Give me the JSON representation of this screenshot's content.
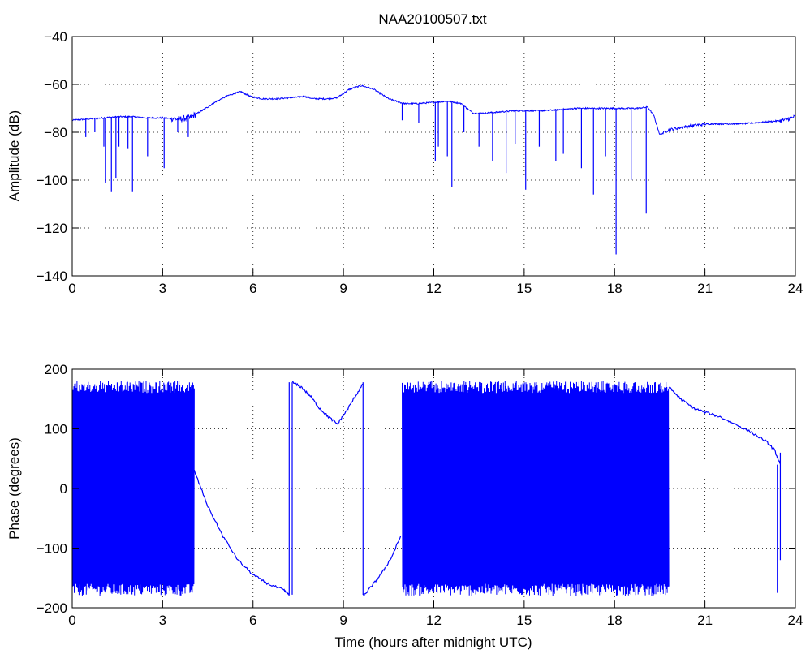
{
  "chart_data": [
    {
      "type": "line",
      "title": "NAA20100507.txt",
      "xlabel": "",
      "ylabel": "Amplitude (dB)",
      "xlim": [
        0,
        24
      ],
      "ylim": [
        -140,
        -40
      ],
      "xticks": [
        0,
        3,
        6,
        9,
        12,
        15,
        18,
        21,
        24
      ],
      "yticks": [
        -140,
        -120,
        -100,
        -80,
        -60,
        -40
      ],
      "grid": true,
      "line_color": "#0000ff",
      "series": [
        {
          "x": [
            0,
            0.5,
            1,
            1.5,
            2,
            2.5,
            3,
            3.5,
            3.9,
            4.3,
            4.8,
            5.2,
            5.6,
            5.9,
            6.3,
            6.8,
            7.3,
            7.7,
            8.0,
            8.5,
            8.8,
            9.2,
            9.6,
            10.0,
            10.5,
            11.0,
            11.5,
            12.0,
            12.5,
            12.9,
            13.3,
            13.7,
            14.2,
            14.7,
            15.2,
            15.7,
            16.2,
            16.7,
            17.2,
            17.7,
            18.2,
            18.7,
            19.1,
            19.3,
            19.5,
            19.8,
            20.2,
            20.7,
            21.2,
            21.7,
            22.2,
            22.7,
            23.2,
            23.6,
            24.0
          ],
          "y": [
            -75,
            -74.5,
            -74,
            -73.5,
            -73.5,
            -74,
            -74,
            -74.5,
            -74,
            -71,
            -67,
            -64.5,
            -63,
            -65,
            -66,
            -66,
            -65.5,
            -65,
            -66,
            -66,
            -65.5,
            -62,
            -60.5,
            -62,
            -66,
            -68,
            -68,
            -67.5,
            -67,
            -68,
            -72,
            -72,
            -71.5,
            -71,
            -71,
            -71,
            -70.5,
            -70,
            -70,
            -70,
            -70,
            -70,
            -69.5,
            -73,
            -81,
            -79,
            -78,
            -77,
            -76.5,
            -76.5,
            -76.5,
            -76,
            -75.5,
            -75,
            -73.5
          ]
        }
      ],
      "spikes": [
        {
          "x": 0.45,
          "y": -82
        },
        {
          "x": 0.75,
          "y": -80
        },
        {
          "x": 1.05,
          "y": -86
        },
        {
          "x": 1.1,
          "y": -101
        },
        {
          "x": 1.3,
          "y": -105
        },
        {
          "x": 1.45,
          "y": -99
        },
        {
          "x": 1.55,
          "y": -86
        },
        {
          "x": 1.85,
          "y": -87
        },
        {
          "x": 2.0,
          "y": -105
        },
        {
          "x": 2.5,
          "y": -90
        },
        {
          "x": 3.05,
          "y": -95
        },
        {
          "x": 3.5,
          "y": -80
        },
        {
          "x": 3.85,
          "y": -82
        },
        {
          "x": 10.95,
          "y": -75
        },
        {
          "x": 11.5,
          "y": -76
        },
        {
          "x": 12.05,
          "y": -92
        },
        {
          "x": 12.15,
          "y": -86
        },
        {
          "x": 12.45,
          "y": -90
        },
        {
          "x": 12.6,
          "y": -103
        },
        {
          "x": 13.0,
          "y": -80
        },
        {
          "x": 13.5,
          "y": -86
        },
        {
          "x": 13.95,
          "y": -92
        },
        {
          "x": 14.4,
          "y": -97
        },
        {
          "x": 14.7,
          "y": -85
        },
        {
          "x": 15.05,
          "y": -104
        },
        {
          "x": 15.5,
          "y": -86
        },
        {
          "x": 16.05,
          "y": -92
        },
        {
          "x": 16.3,
          "y": -89
        },
        {
          "x": 16.9,
          "y": -95
        },
        {
          "x": 17.3,
          "y": -106
        },
        {
          "x": 17.7,
          "y": -90
        },
        {
          "x": 18.05,
          "y": -131
        },
        {
          "x": 18.55,
          "y": -100
        },
        {
          "x": 19.05,
          "y": -114
        }
      ]
    },
    {
      "type": "line",
      "title": "",
      "xlabel": "Time (hours after midnight UTC)",
      "ylabel": "Phase (degrees)",
      "xlim": [
        0,
        24
      ],
      "ylim": [
        -200,
        200
      ],
      "xticks": [
        0,
        3,
        6,
        9,
        12,
        15,
        18,
        21,
        24
      ],
      "yticks": [
        -200,
        -100,
        0,
        100,
        200
      ],
      "grid": true,
      "line_color": "#0000ff",
      "series": [
        {
          "name": "",
          "x": [
            4.05,
            4.5,
            5.0,
            5.5,
            6.0,
            6.5,
            7.0,
            7.2
          ],
          "y": [
            30,
            -30,
            -80,
            -120,
            -145,
            -160,
            -170,
            -178
          ]
        },
        {
          "x": [
            7.3,
            7.6,
            7.9,
            8.2,
            8.5,
            8.8,
            9.1,
            9.4,
            9.65
          ],
          "y": [
            178,
            170,
            155,
            135,
            120,
            108,
            130,
            155,
            175
          ]
        },
        {
          "x": [
            9.65,
            9.7,
            10.0,
            10.3,
            10.6,
            10.9
          ],
          "y": [
            -178,
            -178,
            -160,
            -140,
            -115,
            -80
          ]
        },
        {
          "x": [
            19.8,
            20.2,
            20.6,
            21.0,
            21.5,
            22.0,
            22.5,
            23.0,
            23.3,
            23.5
          ],
          "y": [
            170,
            150,
            135,
            128,
            120,
            108,
            95,
            80,
            65,
            40
          ]
        }
      ],
      "wrapped_segments": [
        {
          "x_start": 0.0,
          "x_end": 4.05,
          "y_min": -180,
          "y_max": 180
        },
        {
          "x_start": 10.95,
          "x_end": 19.5,
          "y_min": -180,
          "y_max": 180
        },
        {
          "x_start": 19.5,
          "x_end": 19.8,
          "y_min": -180,
          "y_max": 180
        }
      ]
    }
  ]
}
